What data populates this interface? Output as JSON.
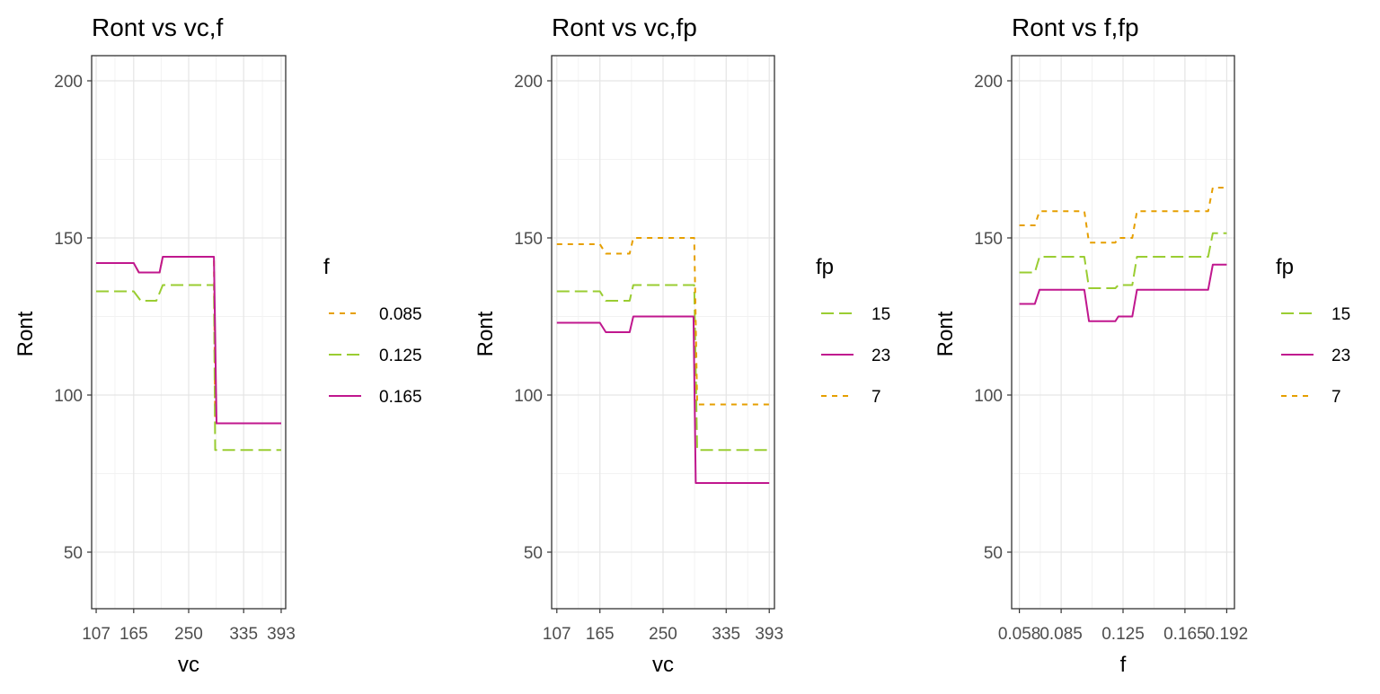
{
  "chart_data": [
    {
      "type": "line",
      "title": "Ront vs vc,f",
      "xlabel": "vc",
      "ylabel": "Ront",
      "xlim": [
        100,
        400
      ],
      "ylim": [
        32,
        208
      ],
      "x_ticks": [
        107,
        165,
        250,
        335,
        393
      ],
      "x_tick_labels": [
        "107",
        "165",
        "250",
        "335",
        "393"
      ],
      "y_ticks": [
        50,
        100,
        150,
        200
      ],
      "y_tick_labels": [
        "50",
        "100",
        "150",
        "200"
      ],
      "grid": true,
      "legend": {
        "title": "f",
        "position": "right"
      },
      "series": [
        {
          "name": "0.085",
          "color": "#e69f00",
          "dash": "short",
          "points": [
            [
              107,
              142
            ],
            [
              165,
              142
            ],
            [
              173,
              139
            ],
            [
              205,
              139
            ],
            [
              210,
              144
            ],
            [
              289,
              144
            ],
            [
              291,
              91
            ],
            [
              393,
              91
            ]
          ]
        },
        {
          "name": "0.125",
          "color": "#9acd32",
          "dash": "long",
          "points": [
            [
              107,
              133
            ],
            [
              165,
              133
            ],
            [
              176,
              130
            ],
            [
              200,
              130
            ],
            [
              210,
              135
            ],
            [
              289,
              135
            ],
            [
              291,
              82.5
            ],
            [
              393,
              82.5
            ]
          ]
        },
        {
          "name": "0.165",
          "color": "#c0178e",
          "dash": "solid",
          "points": [
            [
              107,
              142
            ],
            [
              165,
              142
            ],
            [
              173,
              139
            ],
            [
              205,
              139
            ],
            [
              210,
              144
            ],
            [
              289,
              144
            ],
            [
              293,
              91
            ],
            [
              393,
              91
            ]
          ]
        }
      ]
    },
    {
      "type": "line",
      "title": "Ront vs vc,fp",
      "xlabel": "vc",
      "ylabel": "Ront",
      "xlim": [
        100,
        400
      ],
      "ylim": [
        32,
        208
      ],
      "x_ticks": [
        107,
        165,
        250,
        335,
        393
      ],
      "x_tick_labels": [
        "107",
        "165",
        "250",
        "335",
        "393"
      ],
      "y_ticks": [
        50,
        100,
        150,
        200
      ],
      "y_tick_labels": [
        "50",
        "100",
        "150",
        "200"
      ],
      "grid": true,
      "legend": {
        "title": "fp",
        "position": "right"
      },
      "series": [
        {
          "name": "15",
          "color": "#9acd32",
          "dash": "long",
          "points": [
            [
              107,
              133
            ],
            [
              165,
              133
            ],
            [
              173,
              130
            ],
            [
              205,
              130
            ],
            [
              210,
              135
            ],
            [
              292,
              135
            ],
            [
              296,
              82.5
            ],
            [
              393,
              82.5
            ]
          ]
        },
        {
          "name": "23",
          "color": "#c0178e",
          "dash": "solid",
          "points": [
            [
              107,
              123
            ],
            [
              165,
              123
            ],
            [
              173,
              120
            ],
            [
              205,
              120
            ],
            [
              210,
              125
            ],
            [
              291,
              125
            ],
            [
              294,
              72
            ],
            [
              393,
              72
            ]
          ]
        },
        {
          "name": "7",
          "color": "#e69f00",
          "dash": "short",
          "points": [
            [
              107,
              148
            ],
            [
              165,
              148
            ],
            [
              173,
              145
            ],
            [
              205,
              145
            ],
            [
              210,
              150
            ],
            [
              292,
              150
            ],
            [
              296,
              97
            ],
            [
              393,
              97
            ]
          ]
        }
      ]
    },
    {
      "type": "line",
      "title": "Ront vs f,fp",
      "xlabel": "f",
      "ylabel": "Ront",
      "xlim": [
        0.053,
        0.197
      ],
      "ylim": [
        32,
        208
      ],
      "x_ticks": [
        0.058,
        0.085,
        0.125,
        0.165,
        0.192
      ],
      "x_tick_labels": [
        "0.058",
        "0.085",
        "0.125",
        "0.165",
        "0.192"
      ],
      "y_ticks": [
        50,
        100,
        150,
        200
      ],
      "y_tick_labels": [
        "50",
        "100",
        "150",
        "200"
      ],
      "grid": true,
      "legend": {
        "title": "fp",
        "position": "right"
      },
      "series": [
        {
          "name": "15",
          "color": "#9acd32",
          "dash": "long",
          "points": [
            [
              0.058,
              139
            ],
            [
              0.068,
              139
            ],
            [
              0.071,
              144
            ],
            [
              0.1,
              144
            ],
            [
              0.103,
              134
            ],
            [
              0.12,
              134
            ],
            [
              0.122,
              135
            ],
            [
              0.131,
              135
            ],
            [
              0.134,
              144
            ],
            [
              0.18,
              144
            ],
            [
              0.183,
              151.5
            ],
            [
              0.192,
              151.5
            ]
          ]
        },
        {
          "name": "23",
          "color": "#c0178e",
          "dash": "solid",
          "points": [
            [
              0.058,
              129
            ],
            [
              0.068,
              129
            ],
            [
              0.071,
              133.5
            ],
            [
              0.1,
              133.5
            ],
            [
              0.103,
              123.5
            ],
            [
              0.12,
              123.5
            ],
            [
              0.122,
              125
            ],
            [
              0.131,
              125
            ],
            [
              0.134,
              133.5
            ],
            [
              0.18,
              133.5
            ],
            [
              0.183,
              141.5
            ],
            [
              0.192,
              141.5
            ]
          ]
        },
        {
          "name": "7",
          "color": "#e69f00",
          "dash": "short",
          "points": [
            [
              0.058,
              154
            ],
            [
              0.068,
              154
            ],
            [
              0.071,
              158.5
            ],
            [
              0.1,
              158.5
            ],
            [
              0.103,
              148.5
            ],
            [
              0.12,
              148.5
            ],
            [
              0.122,
              150
            ],
            [
              0.131,
              150
            ],
            [
              0.134,
              158.5
            ],
            [
              0.18,
              158.5
            ],
            [
              0.183,
              166
            ],
            [
              0.192,
              166
            ]
          ]
        }
      ]
    }
  ]
}
